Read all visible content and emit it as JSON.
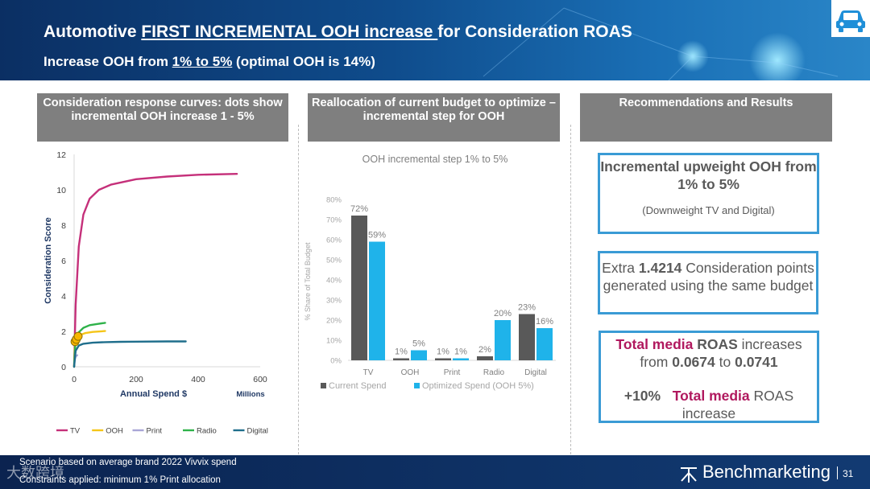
{
  "header": {
    "title_pre": "Automotive ",
    "title_underlined": "FIRST INCREMENTAL OOH increase ",
    "title_post": "for Consideration ROAS",
    "subtitle_pre": "Increase OOH from ",
    "subtitle_underlined": "1% to 5%",
    "subtitle_post": " (optimal OOH is 14%)",
    "icon": "car-icon"
  },
  "panels": {
    "left_title": "Consideration response curves: dots show incremental OOH increase 1 - 5%",
    "middle_title": "Reallocation of current budget to optimize – incremental step for OOH",
    "right_title": "Recommendations and Results"
  },
  "recommendations": {
    "box1_headline": "Incremental upweight OOH from 1% to 5%",
    "box1_sub": "(Downweight TV and Digital)",
    "box2_pre": "Extra ",
    "box2_bold": "1.4214",
    "box2_post": " Consideration points generated using the same budget",
    "box3_l1_accent": "Total media",
    "box3_l1_bold": " ROAS",
    "box3_l1_rest": " increases",
    "box3_l2_pre": "from ",
    "box3_l2_v1": "0.0674",
    "box3_l2_mid": " to ",
    "box3_l2_v2": "0.0741",
    "box3_l3_bold": "+10%",
    "box3_l3_accent": "Total media",
    "box3_l3_rest": " ROAS",
    "box3_l4": "increase"
  },
  "footer": {
    "note1": "Scenario based on average brand 2022  Vivvix spend",
    "note2": "Constraints applied: minimum  1% Print allocation",
    "brand": "Benchmarketing",
    "page": "31",
    "watermark": "大数跨境"
  },
  "colors": {
    "tv": "#c5307a",
    "ooh": "#f5c518",
    "print": "#a9a6d6",
    "radio": "#2fb24a",
    "digital": "#1f6e8c",
    "current_bar": "#595959",
    "optimized_bar": "#1fb3ea",
    "accent_text": "#b0185e",
    "box_border": "#3a9bd5"
  },
  "chart_data": [
    {
      "type": "line",
      "title": "",
      "xlabel": "Annual Spend $",
      "xunit": "Millions",
      "ylabel": "Consideration Score",
      "xlim": [
        0,
        600
      ],
      "ylim": [
        0,
        12
      ],
      "xticks": [
        0,
        200,
        400,
        600
      ],
      "yticks": [
        0,
        2,
        4,
        6,
        8,
        10,
        12
      ],
      "legend_position": "bottom",
      "series": [
        {
          "name": "TV",
          "x": [
            0,
            5,
            15,
            30,
            50,
            80,
            120,
            200,
            300,
            400,
            525
          ],
          "y": [
            0,
            3.5,
            6.8,
            8.6,
            9.5,
            10.0,
            10.3,
            10.6,
            10.75,
            10.85,
            10.9
          ]
        },
        {
          "name": "OOH",
          "x": [
            0,
            2,
            5,
            10,
            20,
            35,
            60,
            100
          ],
          "y": [
            0,
            1.0,
            1.4,
            1.65,
            1.8,
            1.9,
            1.97,
            2.02
          ]
        },
        {
          "name": "Print",
          "x": [
            0,
            1,
            3,
            6,
            10
          ],
          "y": [
            0,
            0.3,
            0.5,
            0.6,
            0.65
          ]
        },
        {
          "name": "Radio",
          "x": [
            0,
            3,
            8,
            15,
            30,
            50,
            75,
            100
          ],
          "y": [
            0,
            1.1,
            1.6,
            1.95,
            2.2,
            2.35,
            2.42,
            2.48
          ]
        },
        {
          "name": "Digital",
          "x": [
            0,
            5,
            15,
            30,
            60,
            100,
            150,
            200,
            300,
            360
          ],
          "y": [
            0,
            0.9,
            1.2,
            1.3,
            1.36,
            1.39,
            1.41,
            1.42,
            1.43,
            1.43
          ]
        }
      ],
      "dots": [
        {
          "series": "OOH",
          "x": 3,
          "y": 1.42
        },
        {
          "series": "OOH",
          "x": 7,
          "y": 1.55
        },
        {
          "series": "OOH",
          "x": 13,
          "y": 1.72
        }
      ]
    },
    {
      "type": "bar",
      "title": "OOH incremental step 1% to 5%",
      "ylabel": "% Share of Total Budget",
      "ylim": [
        0,
        80
      ],
      "yticks": [
        "0%",
        "10%",
        "20%",
        "30%",
        "40%",
        "50%",
        "60%",
        "70%",
        "80%"
      ],
      "categories": [
        "TV",
        "OOH",
        "Print",
        "Radio",
        "Digital"
      ],
      "legend_position": "bottom",
      "series": [
        {
          "name": "Current Spend",
          "values": [
            72,
            1,
            1,
            2,
            23
          ],
          "labels": [
            "72%",
            "1%",
            "1%",
            "2%",
            "23%"
          ]
        },
        {
          "name": "Optimized Spend (OOH 5%)",
          "values": [
            59,
            5,
            1,
            20,
            16
          ],
          "labels": [
            "59%",
            "5%",
            "1%",
            "20%",
            "16%"
          ]
        }
      ]
    }
  ]
}
